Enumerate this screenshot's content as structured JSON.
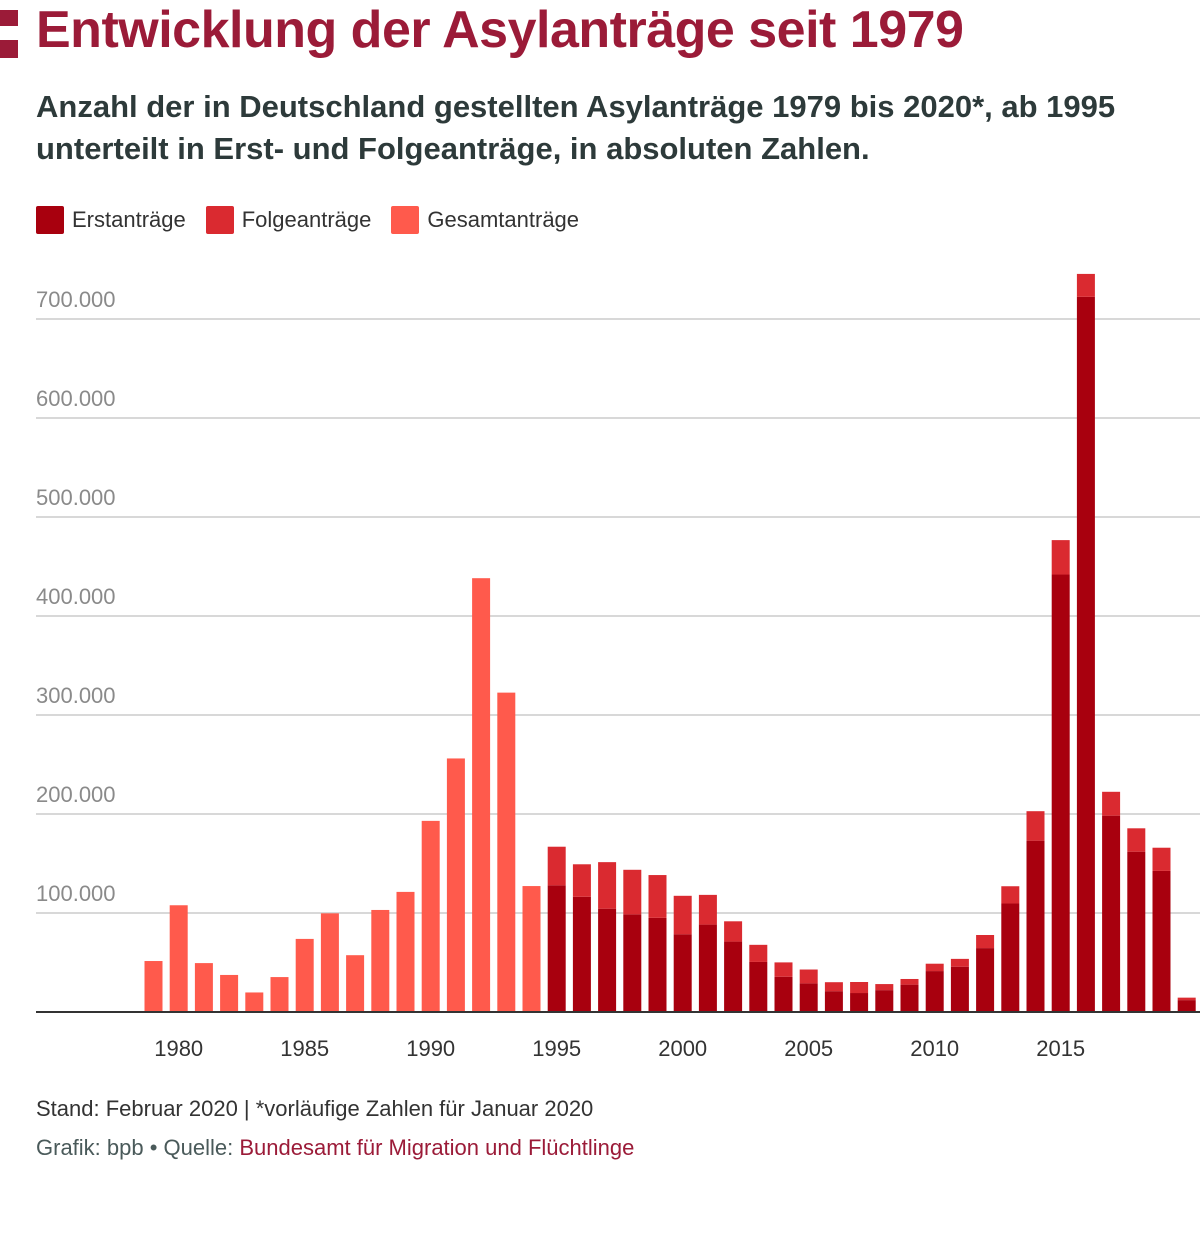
{
  "header": {
    "title": "Entwicklung der Asylanträge seit 1979",
    "subtitle": "Anzahl der in Deutschland gestellten Asylanträge 1979 bis 2020*, ab 1995 unterteilt in Erst- und Folgeanträge, in absoluten Zahlen."
  },
  "footer": {
    "note": "Stand: Februar 2020 | *vorläufige Zahlen für Januar 2020",
    "source_prefix": "Grafik: bpb • Quelle: ",
    "source_link": "Bundesamt für Migration und Flüchtlinge"
  },
  "colors": {
    "brand": "#9b1b38",
    "erst": "#a8000e",
    "folge": "#da2a30",
    "gesamt": "#ff5a4c"
  },
  "chart_data": {
    "type": "bar",
    "stacked": true,
    "legend": [
      "Erstanträge",
      "Folgeanträge",
      "Gesamtanträge"
    ],
    "legend_position": "top-left",
    "x": [
      1979,
      1980,
      1981,
      1982,
      1983,
      1984,
      1985,
      1986,
      1987,
      1988,
      1989,
      1990,
      1991,
      1992,
      1993,
      1994,
      1995,
      1996,
      1997,
      1998,
      1999,
      2000,
      2001,
      2002,
      2003,
      2004,
      2005,
      2006,
      2007,
      2008,
      2009,
      2010,
      2011,
      2012,
      2013,
      2014,
      2015,
      2016,
      2017,
      2018,
      2019,
      2020
    ],
    "x_tick_labels": [
      "1980",
      "1985",
      "1990",
      "1995",
      "2000",
      "2005",
      "2010",
      "2015"
    ],
    "series": [
      {
        "name": "Gesamtanträge",
        "values": [
          51493,
          107818,
          49391,
          37423,
          19737,
          35278,
          73832,
          99650,
          57379,
          103076,
          121318,
          193063,
          256112,
          438191,
          322599,
          127210,
          null,
          null,
          null,
          null,
          null,
          null,
          null,
          null,
          null,
          null,
          null,
          null,
          null,
          null,
          null,
          null,
          null,
          null,
          null,
          null,
          null,
          null,
          null,
          null,
          null,
          null
        ]
      },
      {
        "name": "Erstanträge",
        "values": [
          null,
          null,
          null,
          null,
          null,
          null,
          null,
          null,
          null,
          null,
          null,
          null,
          null,
          null,
          null,
          null,
          127937,
          116367,
          104353,
          98644,
          95113,
          78564,
          88287,
          71127,
          50563,
          35607,
          28914,
          21029,
          19164,
          22085,
          27649,
          41332,
          45741,
          64539,
          109580,
          173072,
          441899,
          722370,
          198317,
          161931,
          142509,
          12000
        ]
      },
      {
        "name": "Folgeanträge",
        "values": [
          null,
          null,
          null,
          null,
          null,
          null,
          null,
          null,
          null,
          null,
          null,
          null,
          null,
          null,
          null,
          null,
          39014,
          32840,
          47014,
          45002,
          43216,
          38806,
          30019,
          20486,
          17285,
          14502,
          13994,
          9072,
          11139,
          6124,
          5704,
          7452,
          7923,
          13238,
          17443,
          29762,
          34750,
          23175,
          24113,
          23617,
          23429,
          2500
        ]
      }
    ],
    "y_ticks": [
      "100.000",
      "200.000",
      "300.000",
      "400.000",
      "500.000",
      "600.000",
      "700.000"
    ],
    "ylim": [
      0,
      750000
    ],
    "grid": true
  }
}
